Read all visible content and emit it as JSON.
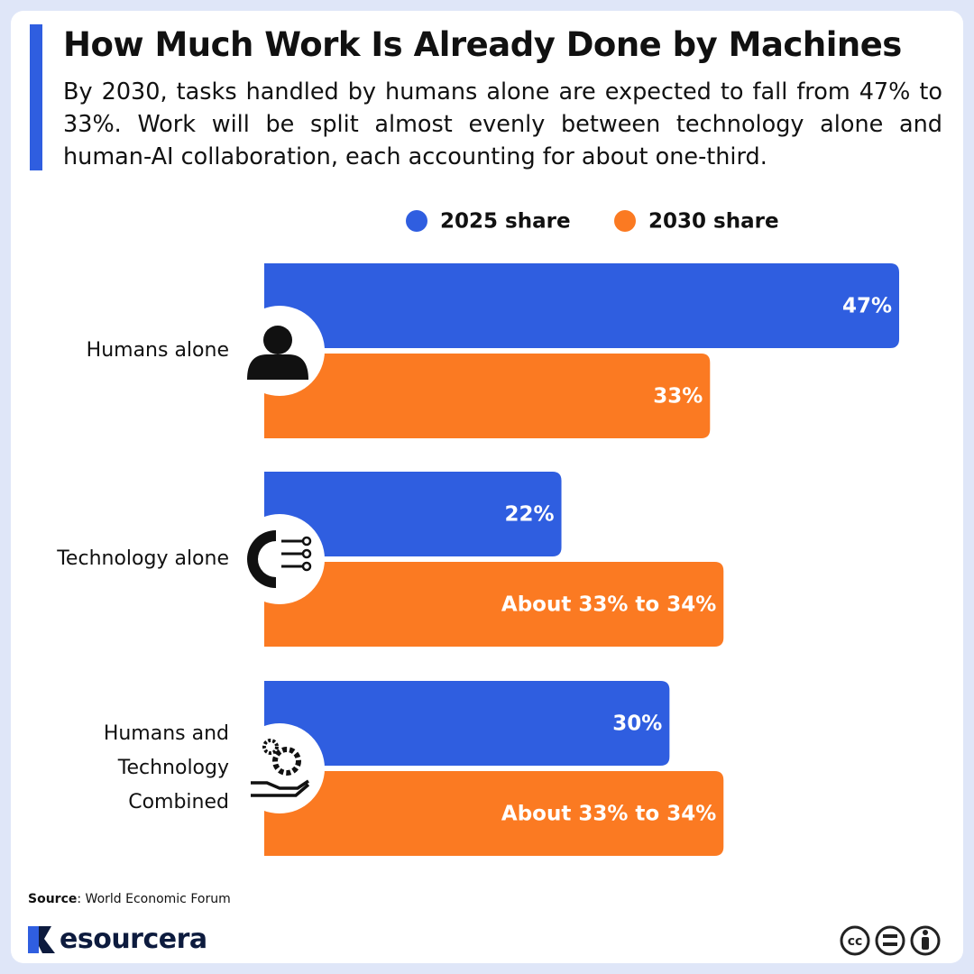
{
  "chart_data": {
    "type": "bar",
    "title": "How Much Work Is Already Done by Machines",
    "subtitle": "By 2030, tasks handled by humans alone are expected to fall from 47% to 33%. Work will be split almost evenly between technology alone and human-AI collaboration, each accounting for about one-third.",
    "categories": [
      "Humans alone",
      "Technology alone",
      "Humans and Technology Combined"
    ],
    "series": [
      {
        "name": "2025 share",
        "color": "#2f5ee0",
        "values": [
          47,
          22,
          30
        ],
        "value_labels": [
          "47%",
          "22%",
          "30%"
        ]
      },
      {
        "name": "2030 share",
        "color": "#fb7a22",
        "values": [
          33,
          34,
          34
        ],
        "value_labels": [
          "33%",
          "About 33% to 34%",
          "About 33% to 34%"
        ]
      }
    ],
    "legend_position": "top",
    "source_label": "Source",
    "source_text": ": World Economic Forum",
    "brand": "esourcera",
    "license_icon": "cc"
  }
}
